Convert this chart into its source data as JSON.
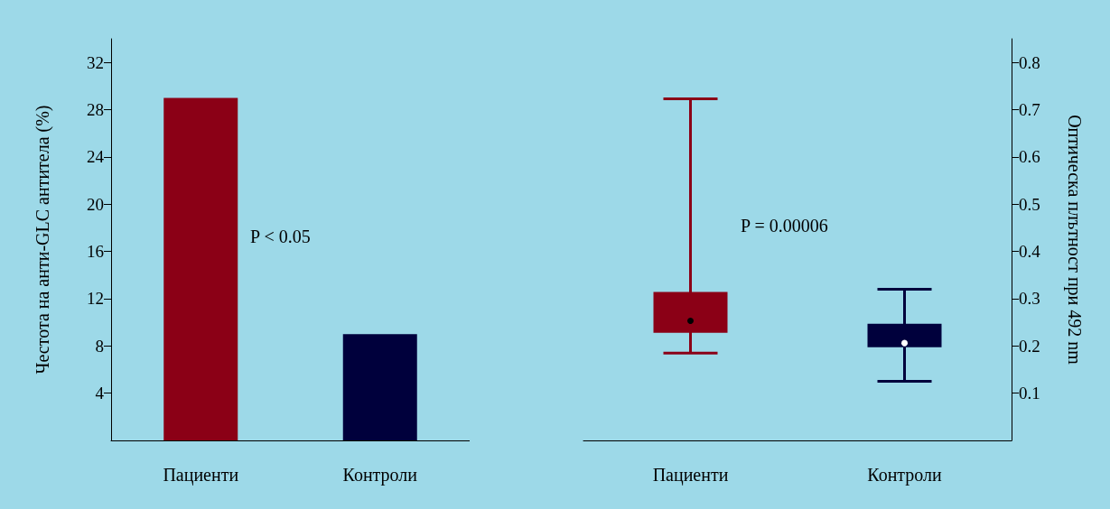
{
  "chart_data": [
    {
      "type": "bar",
      "categories": [
        "Пациенти",
        "Контроли"
      ],
      "ylabel": "Честота на анти-GLC антитела (%)",
      "ylim": [
        0,
        34
      ],
      "yticks": [
        4,
        8,
        12,
        16,
        20,
        24,
        28,
        32
      ],
      "values": [
        29,
        9
      ],
      "colors": [
        "#8b0016",
        "#00003c"
      ],
      "annotations": [
        "P < 0.05"
      ]
    },
    {
      "type": "box",
      "categories": [
        "Пациенти",
        "Контроли"
      ],
      "y2label": "Оптическа плътност при 492 nm",
      "y2lim": [
        0,
        0.85
      ],
      "y2ticks": [
        0.1,
        0.2,
        0.3,
        0.4,
        0.5,
        0.6,
        0.7,
        0.8
      ],
      "annotations": [
        "P = 0.00006"
      ],
      "series": [
        {
          "axis": "y2",
          "colors": [
            "#8b0016",
            "#00003c"
          ],
          "boxes": [
            {
              "low": 0.185,
              "q1": 0.228,
              "median": 0.253,
              "q3": 0.314,
              "high": 0.723
            },
            {
              "low": 0.125,
              "q1": 0.197,
              "median": 0.206,
              "q3": 0.247,
              "high": 0.32
            }
          ]
        }
      ]
    }
  ]
}
